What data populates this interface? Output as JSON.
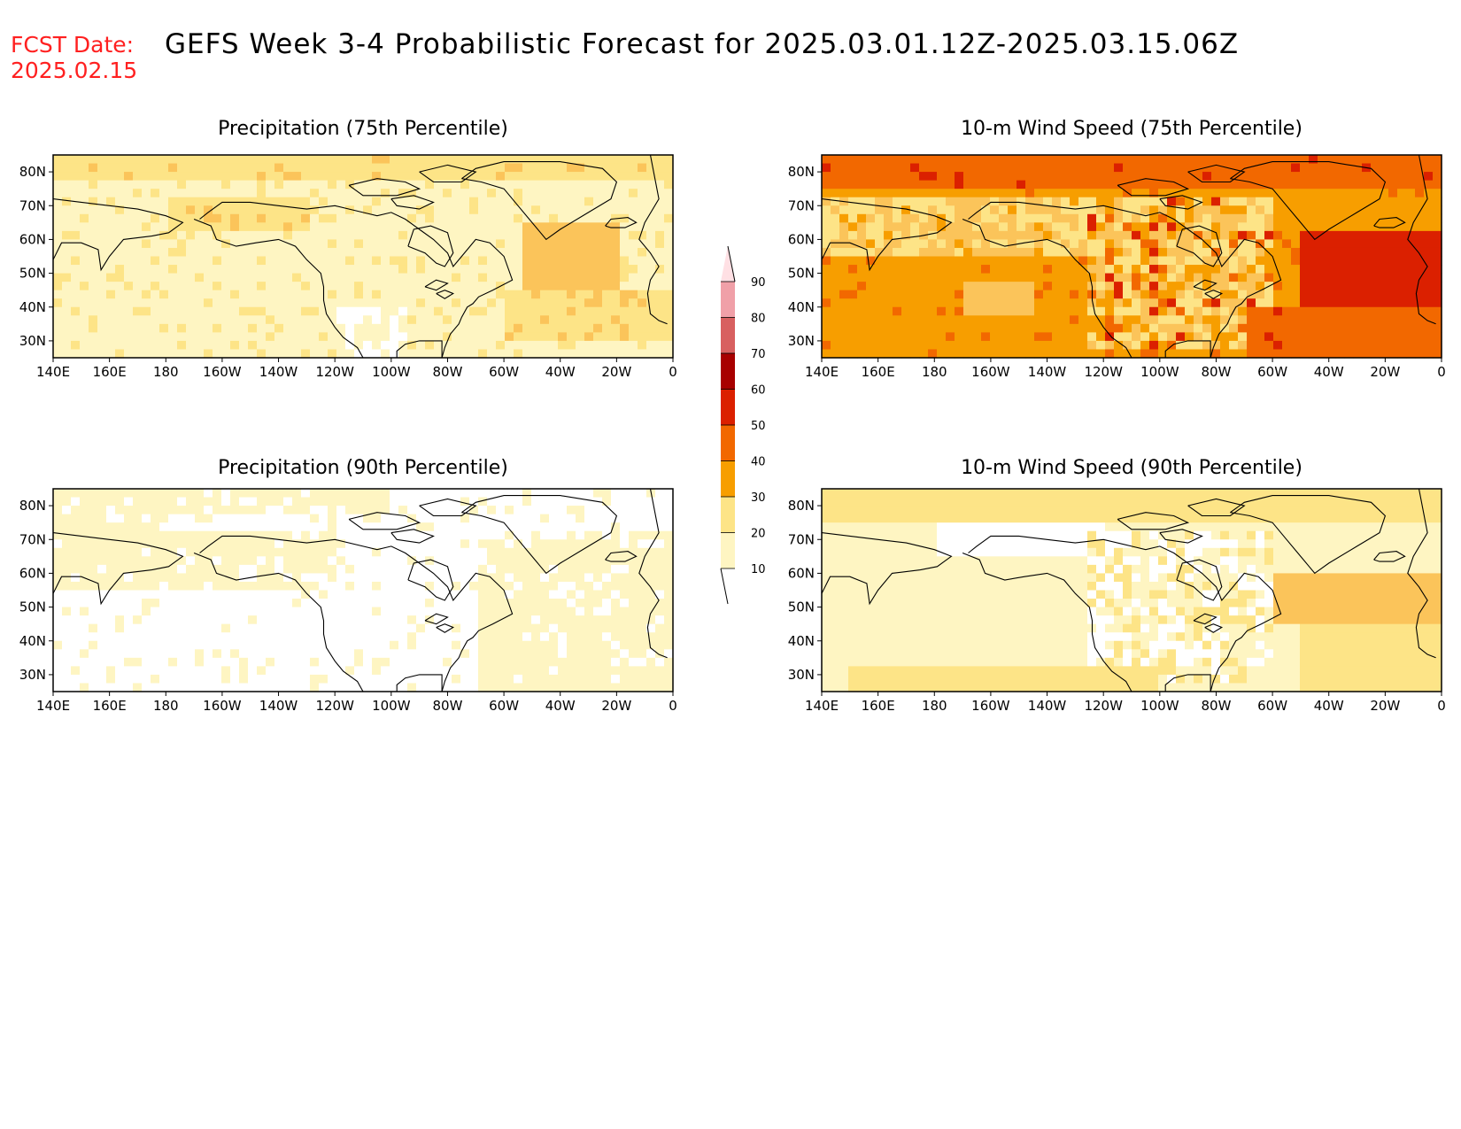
{
  "header": {
    "fcst_label": "FCST Date:",
    "fcst_date": "2025.02.15",
    "title": "GEFS Week 3-4 Probabilistic Forecast for 2025.03.01.12Z-2025.03.15.06Z"
  },
  "axes": {
    "x_ticks": [
      "140E",
      "160E",
      "180",
      "160W",
      "140W",
      "120W",
      "100W",
      "80W",
      "60W",
      "40W",
      "20W",
      "0"
    ],
    "y_ticks": [
      "80N",
      "70N",
      "60N",
      "50N",
      "40N",
      "30N"
    ]
  },
  "colorbar": {
    "ticks": [
      "90",
      "80",
      "70",
      "60",
      "50",
      "40",
      "30",
      "20",
      "10"
    ],
    "colors": [
      "#fff5cc",
      "#fde68a",
      "#fcc655",
      "#f7a000",
      "#f26a00",
      "#dd2200",
      "#b00000",
      "#d86060",
      "#f0a0a8",
      "#ffd8dc"
    ]
  },
  "chart_data": [
    {
      "type": "heatmap",
      "title": "Precipitation (75th Percentile)",
      "x_range": [
        "140E",
        "0"
      ],
      "y_range": [
        "25N",
        "85N"
      ],
      "dominant_categories": [
        "10-20",
        "20-30",
        "30-40"
      ],
      "regions": [
        {
          "area": "North Pacific",
          "category": "10-20"
        },
        {
          "area": "North America interior",
          "category": "10-20"
        },
        {
          "area": "Arctic rim",
          "category": "20-30"
        },
        {
          "area": "North Atlantic",
          "category": "30-40"
        }
      ]
    },
    {
      "type": "heatmap",
      "title": "10-m Wind Speed (75th Percentile)",
      "x_range": [
        "140E",
        "0"
      ],
      "y_range": [
        "25N",
        "85N"
      ],
      "dominant_categories": [
        "30-40",
        "40-50",
        "50-60"
      ],
      "regions": [
        {
          "area": "North Pacific",
          "category": "30-40"
        },
        {
          "area": "North America",
          "category": "20-50"
        },
        {
          "area": "North Atlantic",
          "category": "50-60"
        }
      ]
    },
    {
      "type": "heatmap",
      "title": "Precipitation (90th Percentile)",
      "x_range": [
        "140E",
        "0"
      ],
      "y_range": [
        "25N",
        "85N"
      ],
      "dominant_categories": [
        "<10",
        "10-20"
      ],
      "regions": [
        {
          "area": "North Pacific",
          "category": "<10"
        },
        {
          "area": "Western North America",
          "category": "<10"
        },
        {
          "area": "North Atlantic",
          "category": "10-20"
        }
      ]
    },
    {
      "type": "heatmap",
      "title": "10-m Wind Speed (90th Percentile)",
      "x_range": [
        "140E",
        "0"
      ],
      "y_range": [
        "25N",
        "85N"
      ],
      "dominant_categories": [
        "10-20",
        "20-30",
        "30-40"
      ],
      "regions": [
        {
          "area": "North Pacific",
          "category": "10-20"
        },
        {
          "area": "North America",
          "category": "<10-20"
        },
        {
          "area": "North Atlantic",
          "category": "30-40"
        }
      ]
    }
  ]
}
